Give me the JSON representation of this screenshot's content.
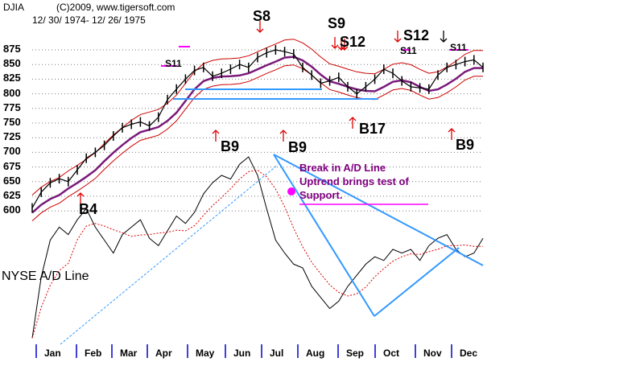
{
  "chart_data": {
    "type": "line",
    "title": "DJIA",
    "copyright": "(C)2009, www.tigersoft.com",
    "date_range": "12/ 30/ 1974- 12/ 26/ 1975",
    "y_ticks": [
      "875",
      "850",
      "825",
      "800",
      "775",
      "750",
      "725",
      "700",
      "675",
      "650",
      "625",
      "600"
    ],
    "ylim": [
      600,
      875
    ],
    "grid": true,
    "x_tick_labels": [
      "Jan",
      "Feb",
      "Mar",
      "Apr",
      "May",
      "Jun",
      "Jul",
      "Aug",
      "Sep",
      "Oct",
      "Nov",
      "Dec"
    ],
    "lower_panel_label": "NYSE A/D Line",
    "note_lines": [
      "Break in A/D Line",
      "Uptrend brings test of",
      "Support."
    ],
    "signals": [
      {
        "label": "S8",
        "kind": "sell"
      },
      {
        "label": "S9",
        "kind": "sell"
      },
      {
        "label": "S12",
        "kind": "sell"
      },
      {
        "label": "S12",
        "kind": "sell"
      },
      {
        "label": "S11",
        "kind": "sell"
      },
      {
        "label": "S11",
        "kind": "sell"
      },
      {
        "label": "S11",
        "kind": "sell"
      },
      {
        "label": "B4",
        "kind": "buy"
      },
      {
        "label": "B9",
        "kind": "buy"
      },
      {
        "label": "B9",
        "kind": "buy"
      },
      {
        "label": "B17",
        "kind": "buy"
      },
      {
        "label": "B9",
        "kind": "buy"
      }
    ],
    "series": [
      {
        "name": "DJIA",
        "x": [
          0,
          0.02,
          0.04,
          0.06,
          0.08,
          0.1,
          0.12,
          0.14,
          0.16,
          0.18,
          0.2,
          0.22,
          0.24,
          0.26,
          0.28,
          0.3,
          0.32,
          0.34,
          0.36,
          0.38,
          0.4,
          0.42,
          0.44,
          0.46,
          0.48,
          0.5,
          0.52,
          0.54,
          0.56,
          0.58,
          0.6,
          0.62,
          0.64,
          0.66,
          0.68,
          0.7,
          0.72,
          0.74,
          0.76,
          0.78,
          0.8,
          0.82,
          0.84,
          0.86,
          0.88,
          0.9,
          0.92,
          0.94,
          0.96,
          0.98,
          1.0
        ],
        "values": [
          605,
          632,
          648,
          655,
          650,
          670,
          690,
          700,
          712,
          728,
          742,
          748,
          752,
          745,
          760,
          790,
          808,
          825,
          840,
          845,
          830,
          835,
          842,
          850,
          845,
          862,
          870,
          875,
          872,
          868,
          845,
          832,
          818,
          822,
          828,
          812,
          800,
          812,
          825,
          842,
          835,
          822,
          812,
          810,
          808,
          832,
          845,
          850,
          855,
          858,
          845
        ]
      },
      {
        "name": "NYSE A/D Line",
        "x": [
          0,
          0.02,
          0.04,
          0.06,
          0.08,
          0.1,
          0.12,
          0.14,
          0.16,
          0.18,
          0.2,
          0.22,
          0.24,
          0.26,
          0.28,
          0.3,
          0.32,
          0.34,
          0.36,
          0.38,
          0.4,
          0.42,
          0.44,
          0.46,
          0.48,
          0.5,
          0.52,
          0.54,
          0.56,
          0.58,
          0.6,
          0.62,
          0.64,
          0.66,
          0.68,
          0.7,
          0.72,
          0.74,
          0.76,
          0.78,
          0.8,
          0.82,
          0.84,
          0.86,
          0.88,
          0.9,
          0.92,
          0.94,
          0.96,
          0.98,
          1.0
        ],
        "values": [
          0.02,
          0.35,
          0.55,
          0.62,
          0.58,
          0.66,
          0.72,
          0.62,
          0.55,
          0.48,
          0.58,
          0.62,
          0.66,
          0.56,
          0.52,
          0.6,
          0.68,
          0.64,
          0.7,
          0.8,
          0.86,
          0.9,
          0.88,
          0.96,
          1.0,
          0.9,
          0.72,
          0.55,
          0.48,
          0.42,
          0.4,
          0.3,
          0.24,
          0.18,
          0.22,
          0.3,
          0.36,
          0.42,
          0.46,
          0.44,
          0.5,
          0.48,
          0.5,
          0.44,
          0.52,
          0.56,
          0.58,
          0.5,
          0.46,
          0.48,
          0.56
        ]
      }
    ]
  }
}
